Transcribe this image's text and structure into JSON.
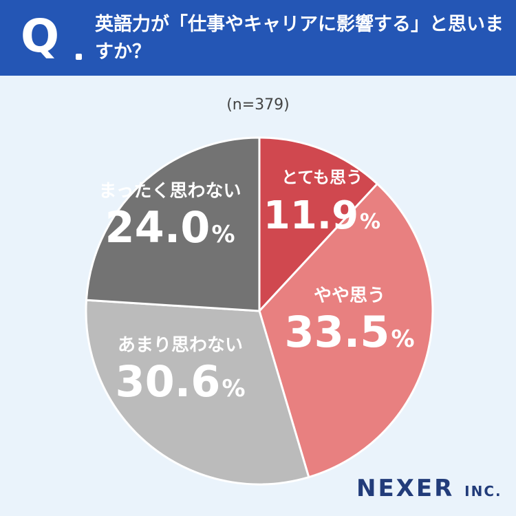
{
  "header": {
    "q_mark": "Q",
    "question": "英語力が「仕事やキャリアに影響する」と思いますか？"
  },
  "chart_data": {
    "type": "pie",
    "sample_size": "(n=379)",
    "start": "12 o'clock, clockwise",
    "slices": [
      {
        "label": "とても思う",
        "value": 11.9,
        "value_text": "11.9",
        "unit": "%",
        "color": "#d0484f"
      },
      {
        "label": "やや思う",
        "value": 33.5,
        "value_text": "33.5",
        "unit": "%",
        "color": "#e88080"
      },
      {
        "label": "あまり思わない",
        "value": 30.6,
        "value_text": "30.6",
        "unit": "%",
        "color": "#bbbbbb"
      },
      {
        "label": "まったく思わない",
        "value": 24.0,
        "value_text": "24.0",
        "unit": "%",
        "color": "#737373"
      }
    ]
  },
  "logo": {
    "name": "NEXER",
    "suffix": "INC."
  },
  "colors": {
    "header_bg": "#2456b5",
    "page_bg": "#eaf3fb",
    "separator": "#ffffff"
  }
}
